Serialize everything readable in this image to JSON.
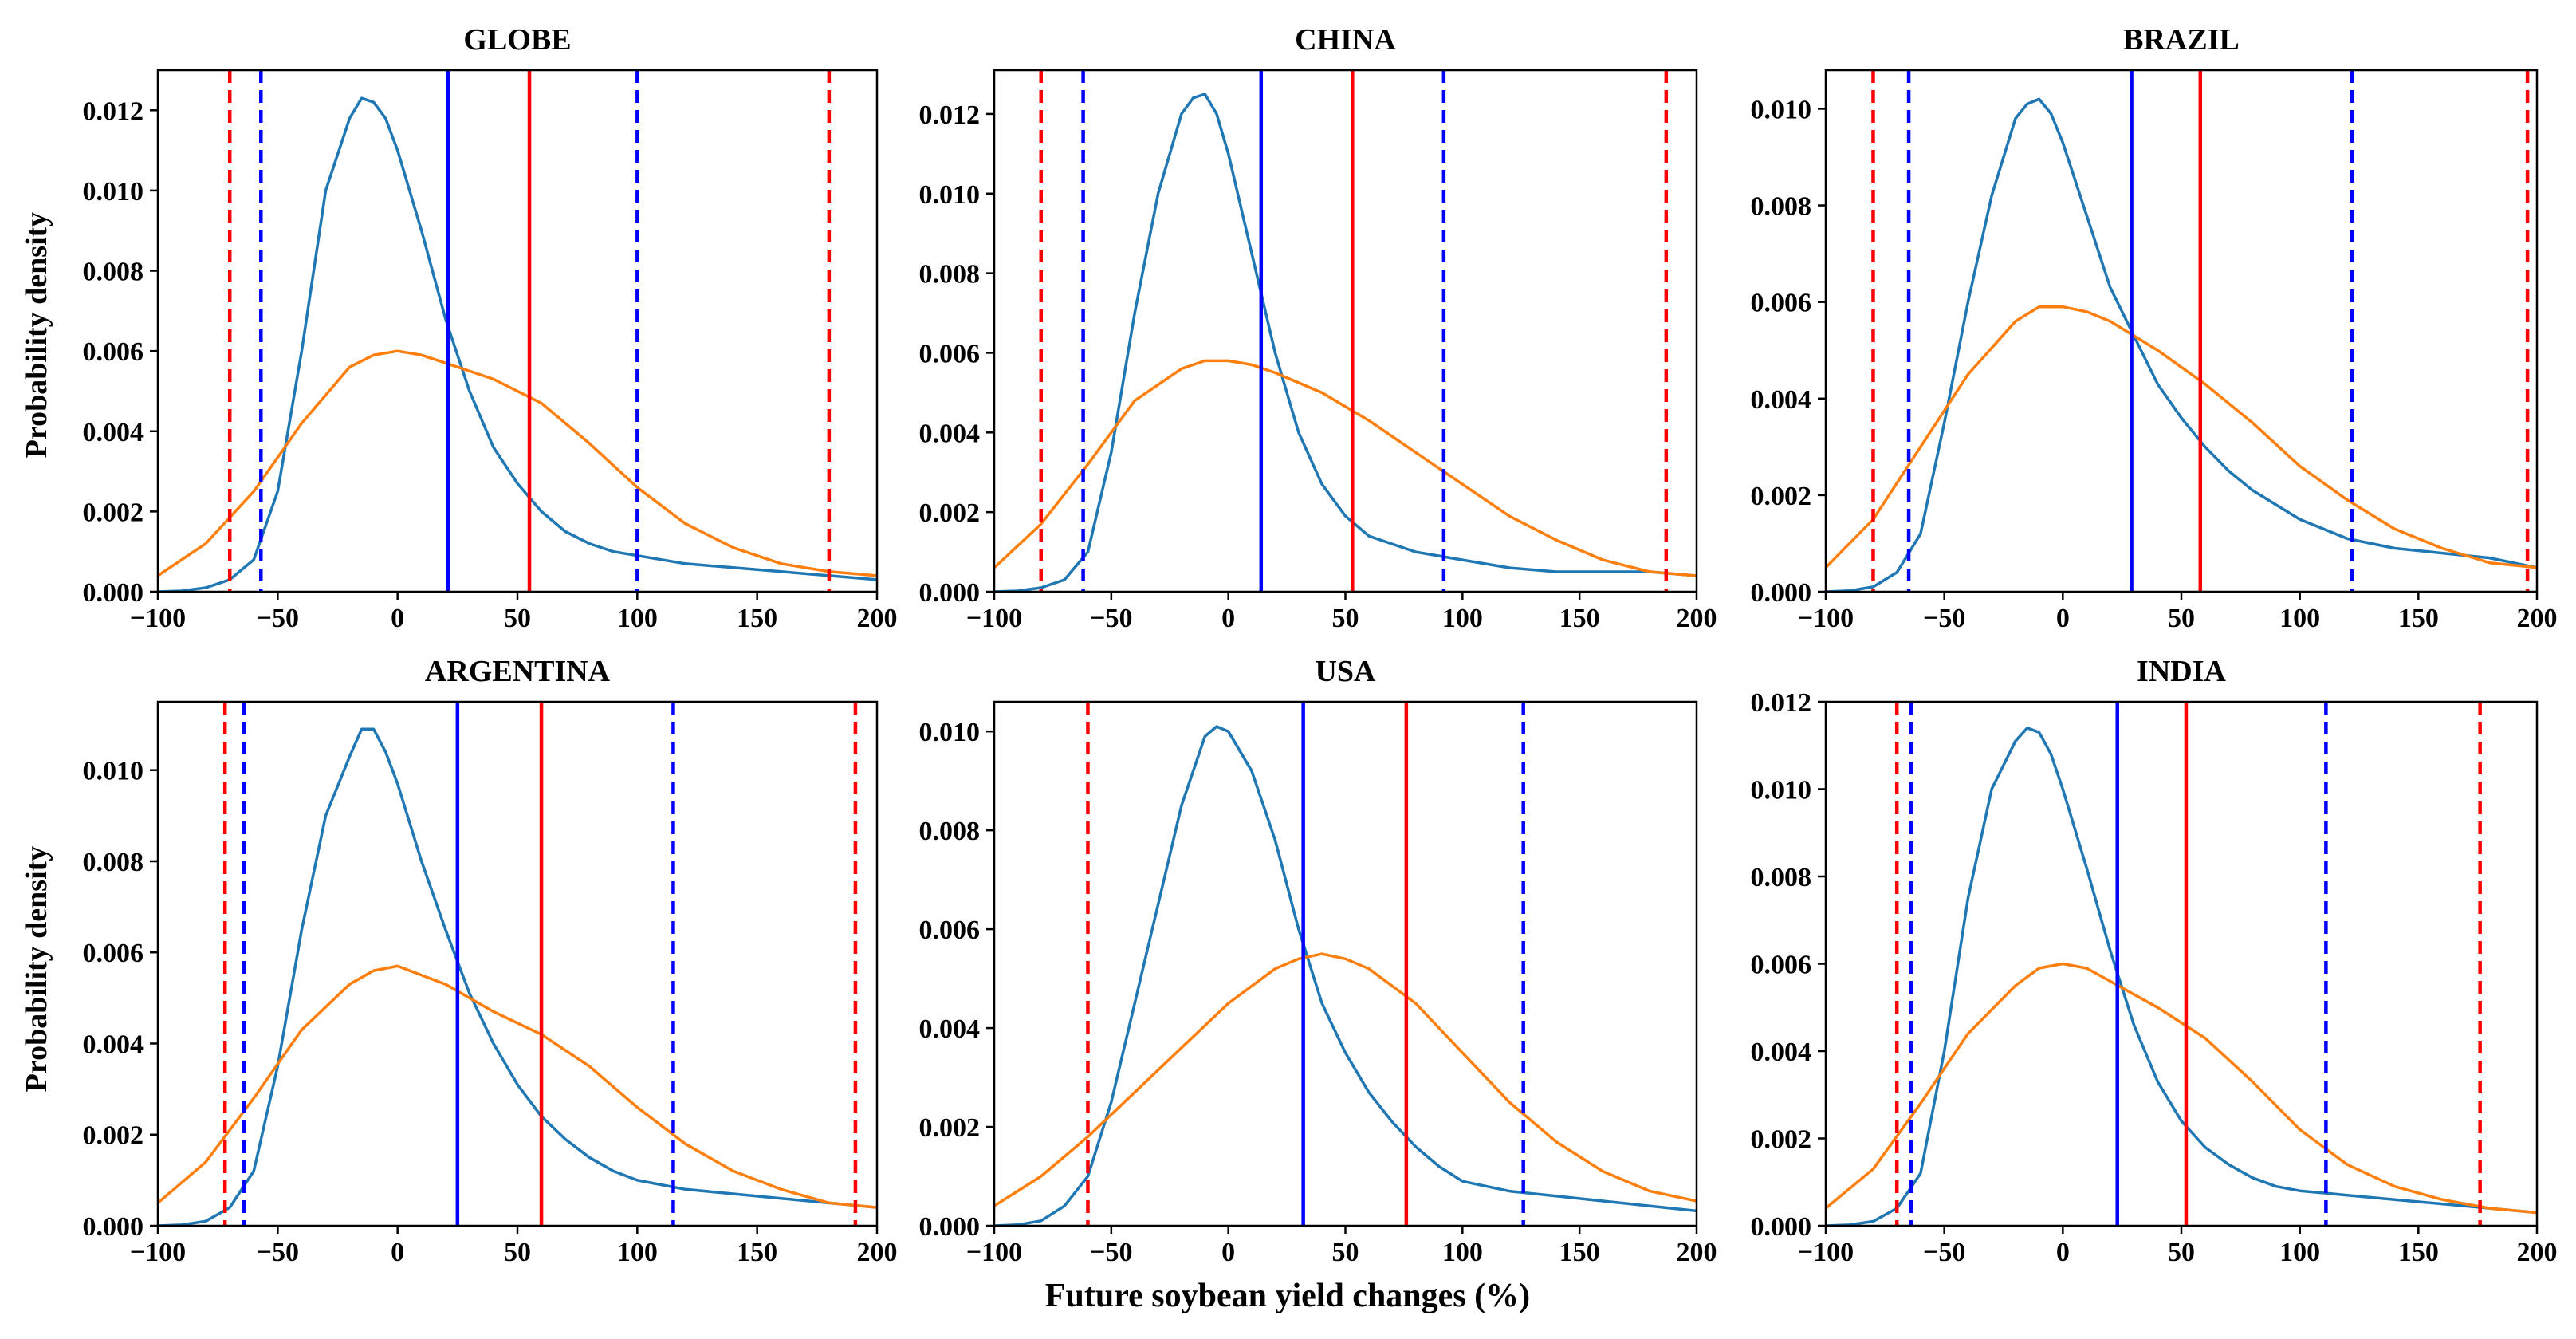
{
  "figure": {
    "ylabel": "Probability density",
    "xlabel": "Future soybean yield changes (%)",
    "colors": {
      "blue_curve": "#1f77b4",
      "orange_curve": "#ff7f0e",
      "blue_line": "#0000ff",
      "red_line": "#ff0000"
    }
  },
  "chart_data": [
    {
      "type": "line",
      "title": "GLOBE",
      "xlim": [
        -100,
        200
      ],
      "ylim": [
        0,
        0.013
      ],
      "xticks": [
        -100,
        -50,
        0,
        50,
        100,
        150,
        200
      ],
      "yticks": [
        0.0,
        0.002,
        0.004,
        0.006,
        0.008,
        0.01,
        0.012
      ],
      "series": [
        {
          "name": "blue",
          "x": [
            -100,
            -90,
            -80,
            -70,
            -60,
            -50,
            -40,
            -30,
            -20,
            -15,
            -10,
            -5,
            0,
            10,
            20,
            30,
            40,
            50,
            60,
            70,
            80,
            90,
            100,
            120,
            140,
            160,
            180,
            200
          ],
          "y": [
            0.0,
            2e-05,
            0.0001,
            0.0003,
            0.0008,
            0.0025,
            0.006,
            0.01,
            0.0118,
            0.0123,
            0.0122,
            0.0118,
            0.011,
            0.009,
            0.0068,
            0.005,
            0.0036,
            0.0027,
            0.002,
            0.0015,
            0.0012,
            0.001,
            0.0009,
            0.0007,
            0.0006,
            0.0005,
            0.0004,
            0.0003
          ]
        },
        {
          "name": "orange",
          "x": [
            -100,
            -80,
            -60,
            -40,
            -20,
            -10,
            0,
            10,
            20,
            40,
            60,
            80,
            100,
            120,
            140,
            160,
            180,
            200
          ],
          "y": [
            0.0004,
            0.0012,
            0.0025,
            0.0042,
            0.0056,
            0.0059,
            0.006,
            0.0059,
            0.0057,
            0.0053,
            0.0047,
            0.0037,
            0.0026,
            0.0017,
            0.0011,
            0.0007,
            0.0005,
            0.0004
          ]
        }
      ],
      "vlines": [
        {
          "x": -70,
          "color": "red",
          "style": "dashed"
        },
        {
          "x": -57,
          "color": "blue",
          "style": "dashed"
        },
        {
          "x": 21,
          "color": "blue",
          "style": "solid"
        },
        {
          "x": 55,
          "color": "red",
          "style": "solid"
        },
        {
          "x": 100,
          "color": "blue",
          "style": "dashed"
        },
        {
          "x": 180,
          "color": "red",
          "style": "dashed"
        }
      ]
    },
    {
      "type": "line",
      "title": "CHINA",
      "xlim": [
        -100,
        200
      ],
      "ylim": [
        0,
        0.0131
      ],
      "xticks": [
        -100,
        -50,
        0,
        50,
        100,
        150,
        200
      ],
      "yticks": [
        0.0,
        0.002,
        0.004,
        0.006,
        0.008,
        0.01,
        0.012
      ],
      "series": [
        {
          "name": "blue",
          "x": [
            -100,
            -90,
            -80,
            -70,
            -60,
            -50,
            -40,
            -30,
            -20,
            -15,
            -10,
            -5,
            0,
            10,
            20,
            30,
            40,
            50,
            60,
            70,
            80,
            90,
            100,
            120,
            140,
            160,
            180,
            200
          ],
          "y": [
            0.0,
            2e-05,
            0.0001,
            0.0003,
            0.001,
            0.0035,
            0.007,
            0.01,
            0.012,
            0.0124,
            0.0125,
            0.012,
            0.011,
            0.0085,
            0.006,
            0.004,
            0.0027,
            0.0019,
            0.0014,
            0.0012,
            0.001,
            0.0009,
            0.0008,
            0.0006,
            0.0005,
            0.0005,
            0.0005,
            0.0004
          ]
        },
        {
          "name": "orange",
          "x": [
            -100,
            -80,
            -60,
            -40,
            -20,
            -10,
            0,
            10,
            20,
            40,
            60,
            80,
            100,
            120,
            140,
            160,
            180,
            200
          ],
          "y": [
            0.0006,
            0.0017,
            0.0032,
            0.0048,
            0.0056,
            0.0058,
            0.0058,
            0.0057,
            0.0055,
            0.005,
            0.0043,
            0.0035,
            0.0027,
            0.0019,
            0.0013,
            0.0008,
            0.0005,
            0.0004
          ]
        }
      ],
      "vlines": [
        {
          "x": -80,
          "color": "red",
          "style": "dashed"
        },
        {
          "x": -62,
          "color": "blue",
          "style": "dashed"
        },
        {
          "x": 14,
          "color": "blue",
          "style": "solid"
        },
        {
          "x": 53,
          "color": "red",
          "style": "solid"
        },
        {
          "x": 92,
          "color": "blue",
          "style": "dashed"
        },
        {
          "x": 187,
          "color": "red",
          "style": "dashed"
        }
      ]
    },
    {
      "type": "line",
      "title": "BRAZIL",
      "xlim": [
        -100,
        200
      ],
      "ylim": [
        0,
        0.0108
      ],
      "xticks": [
        -100,
        -50,
        0,
        50,
        100,
        150,
        200
      ],
      "yticks": [
        0.0,
        0.002,
        0.004,
        0.006,
        0.008,
        0.01
      ],
      "series": [
        {
          "name": "blue",
          "x": [
            -100,
            -90,
            -80,
            -70,
            -60,
            -50,
            -40,
            -30,
            -20,
            -15,
            -10,
            -5,
            0,
            10,
            20,
            30,
            40,
            50,
            60,
            70,
            80,
            90,
            100,
            120,
            140,
            160,
            180,
            200
          ],
          "y": [
            0.0,
            2e-05,
            0.0001,
            0.0004,
            0.0012,
            0.0035,
            0.006,
            0.0082,
            0.0098,
            0.0101,
            0.0102,
            0.0099,
            0.0093,
            0.0078,
            0.0063,
            0.0053,
            0.0043,
            0.0036,
            0.003,
            0.0025,
            0.0021,
            0.0018,
            0.0015,
            0.0011,
            0.0009,
            0.0008,
            0.0007,
            0.0005
          ]
        },
        {
          "name": "orange",
          "x": [
            -100,
            -80,
            -60,
            -40,
            -20,
            -10,
            0,
            10,
            20,
            40,
            60,
            80,
            100,
            120,
            140,
            160,
            180,
            200
          ],
          "y": [
            0.0005,
            0.0015,
            0.003,
            0.0045,
            0.0056,
            0.0059,
            0.0059,
            0.0058,
            0.0056,
            0.005,
            0.0043,
            0.0035,
            0.0026,
            0.0019,
            0.0013,
            0.0009,
            0.0006,
            0.0005
          ]
        }
      ],
      "vlines": [
        {
          "x": -80,
          "color": "red",
          "style": "dashed"
        },
        {
          "x": -65,
          "color": "blue",
          "style": "dashed"
        },
        {
          "x": 29,
          "color": "blue",
          "style": "solid"
        },
        {
          "x": 58,
          "color": "red",
          "style": "solid"
        },
        {
          "x": 122,
          "color": "blue",
          "style": "dashed"
        },
        {
          "x": 196,
          "color": "red",
          "style": "dashed"
        }
      ]
    },
    {
      "type": "line",
      "title": "ARGENTINA",
      "xlim": [
        -100,
        200
      ],
      "ylim": [
        0,
        0.0115
      ],
      "xticks": [
        -100,
        -50,
        0,
        50,
        100,
        150,
        200
      ],
      "yticks": [
        0.0,
        0.002,
        0.004,
        0.006,
        0.008,
        0.01
      ],
      "series": [
        {
          "name": "blue",
          "x": [
            -100,
            -90,
            -80,
            -70,
            -60,
            -50,
            -40,
            -30,
            -20,
            -15,
            -10,
            -5,
            0,
            10,
            20,
            30,
            40,
            50,
            60,
            70,
            80,
            90,
            100,
            120,
            140,
            160,
            180,
            200
          ],
          "y": [
            0.0,
            2e-05,
            0.0001,
            0.0004,
            0.0012,
            0.0035,
            0.0065,
            0.009,
            0.0103,
            0.0109,
            0.0109,
            0.0104,
            0.0097,
            0.008,
            0.0065,
            0.0051,
            0.004,
            0.0031,
            0.0024,
            0.0019,
            0.0015,
            0.0012,
            0.001,
            0.0008,
            0.0007,
            0.0006,
            0.0005,
            0.0004
          ]
        },
        {
          "name": "orange",
          "x": [
            -100,
            -80,
            -60,
            -40,
            -20,
            -10,
            0,
            10,
            20,
            40,
            60,
            80,
            100,
            120,
            140,
            160,
            180,
            200
          ],
          "y": [
            0.0005,
            0.0014,
            0.0028,
            0.0043,
            0.0053,
            0.0056,
            0.0057,
            0.0055,
            0.0053,
            0.0047,
            0.0042,
            0.0035,
            0.0026,
            0.0018,
            0.0012,
            0.0008,
            0.0005,
            0.0004
          ]
        }
      ],
      "vlines": [
        {
          "x": -72,
          "color": "red",
          "style": "dashed"
        },
        {
          "x": -64,
          "color": "blue",
          "style": "dashed"
        },
        {
          "x": 25,
          "color": "blue",
          "style": "solid"
        },
        {
          "x": 60,
          "color": "red",
          "style": "solid"
        },
        {
          "x": 115,
          "color": "blue",
          "style": "dashed"
        },
        {
          "x": 191,
          "color": "red",
          "style": "dashed"
        }
      ]
    },
    {
      "type": "line",
      "title": "USA",
      "xlim": [
        -100,
        200
      ],
      "ylim": [
        0,
        0.0106
      ],
      "xticks": [
        -100,
        -50,
        0,
        50,
        100,
        150,
        200
      ],
      "yticks": [
        0.0,
        0.002,
        0.004,
        0.006,
        0.008,
        0.01
      ],
      "series": [
        {
          "name": "blue",
          "x": [
            -100,
            -90,
            -80,
            -70,
            -60,
            -50,
            -40,
            -30,
            -20,
            -10,
            -5,
            0,
            10,
            20,
            30,
            40,
            50,
            60,
            70,
            80,
            90,
            100,
            120,
            140,
            160,
            180,
            200
          ],
          "y": [
            0.0,
            2e-05,
            0.0001,
            0.0004,
            0.001,
            0.0025,
            0.0045,
            0.0065,
            0.0085,
            0.0099,
            0.0101,
            0.01,
            0.0092,
            0.0078,
            0.006,
            0.0045,
            0.0035,
            0.0027,
            0.0021,
            0.0016,
            0.0012,
            0.0009,
            0.0007,
            0.0006,
            0.0005,
            0.0004,
            0.0003
          ]
        },
        {
          "name": "orange",
          "x": [
            -100,
            -80,
            -60,
            -40,
            -20,
            0,
            20,
            30,
            40,
            50,
            60,
            80,
            100,
            120,
            140,
            160,
            180,
            200
          ],
          "y": [
            0.0004,
            0.001,
            0.0018,
            0.0027,
            0.0036,
            0.0045,
            0.0052,
            0.0054,
            0.0055,
            0.0054,
            0.0052,
            0.0045,
            0.0035,
            0.0025,
            0.0017,
            0.0011,
            0.0007,
            0.0005
          ]
        }
      ],
      "vlines": [
        {
          "x": -60,
          "color": "red",
          "style": "dashed"
        },
        {
          "x": 32,
          "color": "blue",
          "style": "solid"
        },
        {
          "x": 76,
          "color": "red",
          "style": "solid"
        },
        {
          "x": 126,
          "color": "blue",
          "style": "dashed"
        }
      ]
    },
    {
      "type": "line",
      "title": "INDIA",
      "xlim": [
        -100,
        200
      ],
      "ylim": [
        0,
        0.012
      ],
      "xticks": [
        -100,
        -50,
        0,
        50,
        100,
        150,
        200
      ],
      "yticks": [
        0.0,
        0.002,
        0.004,
        0.006,
        0.008,
        0.01,
        0.012
      ],
      "series": [
        {
          "name": "blue",
          "x": [
            -100,
            -90,
            -80,
            -70,
            -60,
            -50,
            -40,
            -30,
            -20,
            -15,
            -10,
            -5,
            0,
            10,
            20,
            30,
            40,
            50,
            60,
            70,
            80,
            90,
            100,
            120,
            140,
            160,
            180,
            200
          ],
          "y": [
            0.0,
            2e-05,
            0.0001,
            0.0004,
            0.0012,
            0.004,
            0.0075,
            0.01,
            0.0111,
            0.0114,
            0.0113,
            0.0108,
            0.01,
            0.0082,
            0.0063,
            0.0046,
            0.0033,
            0.0024,
            0.0018,
            0.0014,
            0.0011,
            0.0009,
            0.0008,
            0.0007,
            0.0006,
            0.0005,
            0.0004,
            0.0003
          ]
        },
        {
          "name": "orange",
          "x": [
            -100,
            -80,
            -60,
            -40,
            -20,
            -10,
            0,
            10,
            20,
            40,
            60,
            80,
            100,
            120,
            140,
            160,
            180,
            200
          ],
          "y": [
            0.0004,
            0.0013,
            0.0028,
            0.0044,
            0.0055,
            0.0059,
            0.006,
            0.0059,
            0.0056,
            0.005,
            0.0043,
            0.0033,
            0.0022,
            0.0014,
            0.0009,
            0.0006,
            0.0004,
            0.0003
          ]
        }
      ],
      "vlines": [
        {
          "x": -70,
          "color": "red",
          "style": "dashed"
        },
        {
          "x": -64,
          "color": "blue",
          "style": "dashed"
        },
        {
          "x": 23,
          "color": "blue",
          "style": "solid"
        },
        {
          "x": 52,
          "color": "red",
          "style": "solid"
        },
        {
          "x": 111,
          "color": "blue",
          "style": "dashed"
        },
        {
          "x": 176,
          "color": "red",
          "style": "dashed"
        }
      ]
    }
  ]
}
